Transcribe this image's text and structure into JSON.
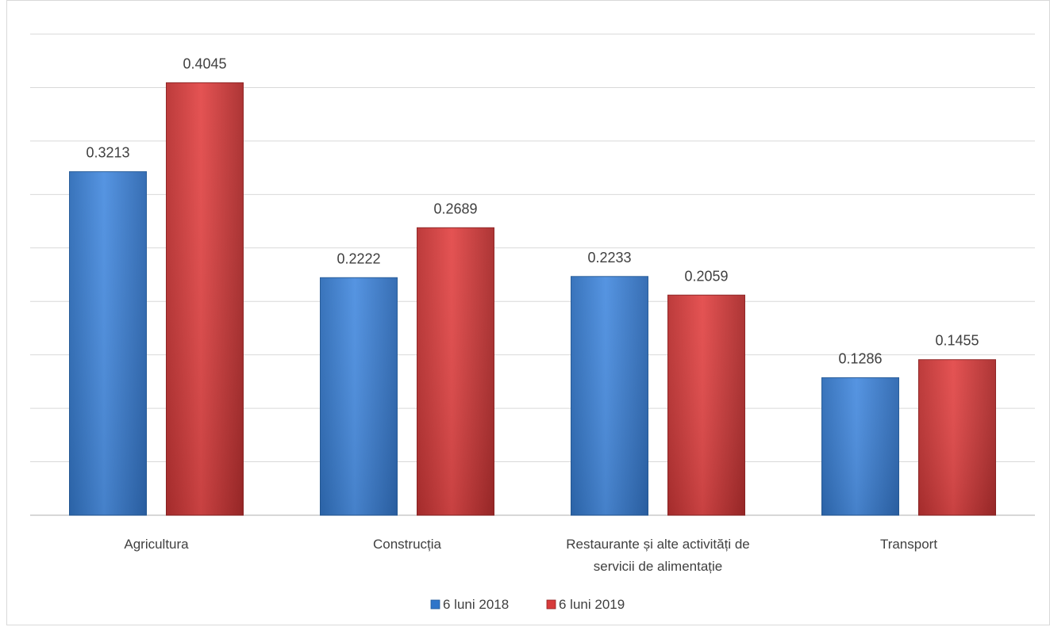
{
  "chart_data": {
    "type": "bar",
    "categories": [
      [
        "Agricultura"
      ],
      [
        "Construcția"
      ],
      [
        "Restaurante și alte activități de",
        "servicii de alimentație"
      ],
      [
        "Transport"
      ]
    ],
    "series": [
      {
        "name": "6 luni 2018",
        "color": "#2f75c9",
        "values": [
          0.3213,
          0.2222,
          0.2233,
          0.1286
        ]
      },
      {
        "name": "6 luni 2019",
        "color": "#d73b3b",
        "values": [
          0.4045,
          0.2689,
          0.2059,
          0.1455
        ]
      }
    ],
    "ylim": [
      0,
      0.45
    ],
    "grid": true,
    "legend_position": "bottom"
  }
}
